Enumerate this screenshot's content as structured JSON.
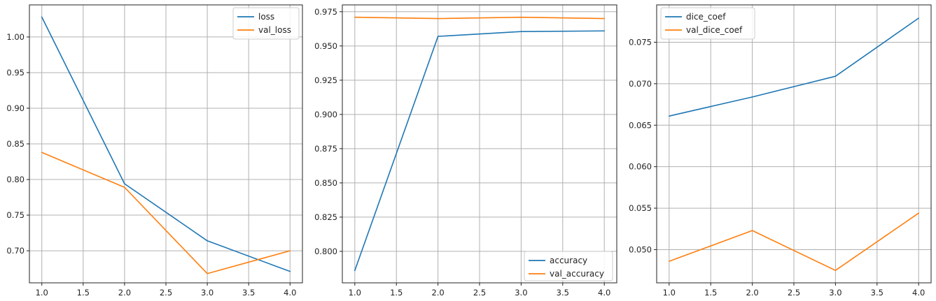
{
  "chart_data": [
    {
      "type": "line",
      "x": [
        1,
        2,
        3,
        4
      ],
      "xlim": [
        0.85,
        4.15
      ],
      "ylim": [
        0.655,
        1.045
      ],
      "xticks": [
        "1.0",
        "1.5",
        "2.0",
        "2.5",
        "3.0",
        "3.5",
        "4.0"
      ],
      "yticks": [
        "0.70",
        "0.75",
        "0.80",
        "0.85",
        "0.90",
        "0.95",
        "1.00"
      ],
      "grid": true,
      "legend_position": "top-right",
      "series": [
        {
          "name": "loss",
          "color": "#1f77b4",
          "values": [
            1.028,
            0.794,
            0.714,
            0.671
          ]
        },
        {
          "name": "val_loss",
          "color": "#ff7f0e",
          "values": [
            0.838,
            0.789,
            0.668,
            0.7
          ]
        }
      ]
    },
    {
      "type": "line",
      "x": [
        1,
        2,
        3,
        4
      ],
      "xlim": [
        0.85,
        4.15
      ],
      "ylim": [
        0.777,
        0.98
      ],
      "xticks": [
        "1.0",
        "1.5",
        "2.0",
        "2.5",
        "3.0",
        "3.5",
        "4.0"
      ],
      "yticks": [
        "0.800",
        "0.825",
        "0.850",
        "0.875",
        "0.900",
        "0.925",
        "0.950",
        "0.975"
      ],
      "grid": true,
      "legend_position": "bottom-right",
      "series": [
        {
          "name": "accuracy",
          "color": "#1f77b4",
          "values": [
            0.786,
            0.957,
            0.9605,
            0.961
          ]
        },
        {
          "name": "val_accuracy",
          "color": "#ff7f0e",
          "values": [
            0.971,
            0.97,
            0.971,
            0.97
          ]
        }
      ]
    },
    {
      "type": "line",
      "x": [
        1,
        2,
        3,
        4
      ],
      "xlim": [
        0.85,
        4.15
      ],
      "ylim": [
        0.046,
        0.0795
      ],
      "xticks": [
        "1.0",
        "1.5",
        "2.0",
        "2.5",
        "3.0",
        "3.5",
        "4.0"
      ],
      "yticks": [
        "0.050",
        "0.055",
        "0.060",
        "0.065",
        "0.070",
        "0.075"
      ],
      "grid": true,
      "legend_position": "top-left",
      "series": [
        {
          "name": "dice_coef",
          "color": "#1f77b4",
          "values": [
            0.0661,
            0.0684,
            0.0709,
            0.0779
          ]
        },
        {
          "name": "val_dice_coef",
          "color": "#ff7f0e",
          "values": [
            0.0486,
            0.0523,
            0.0475,
            0.0544
          ]
        }
      ]
    }
  ]
}
